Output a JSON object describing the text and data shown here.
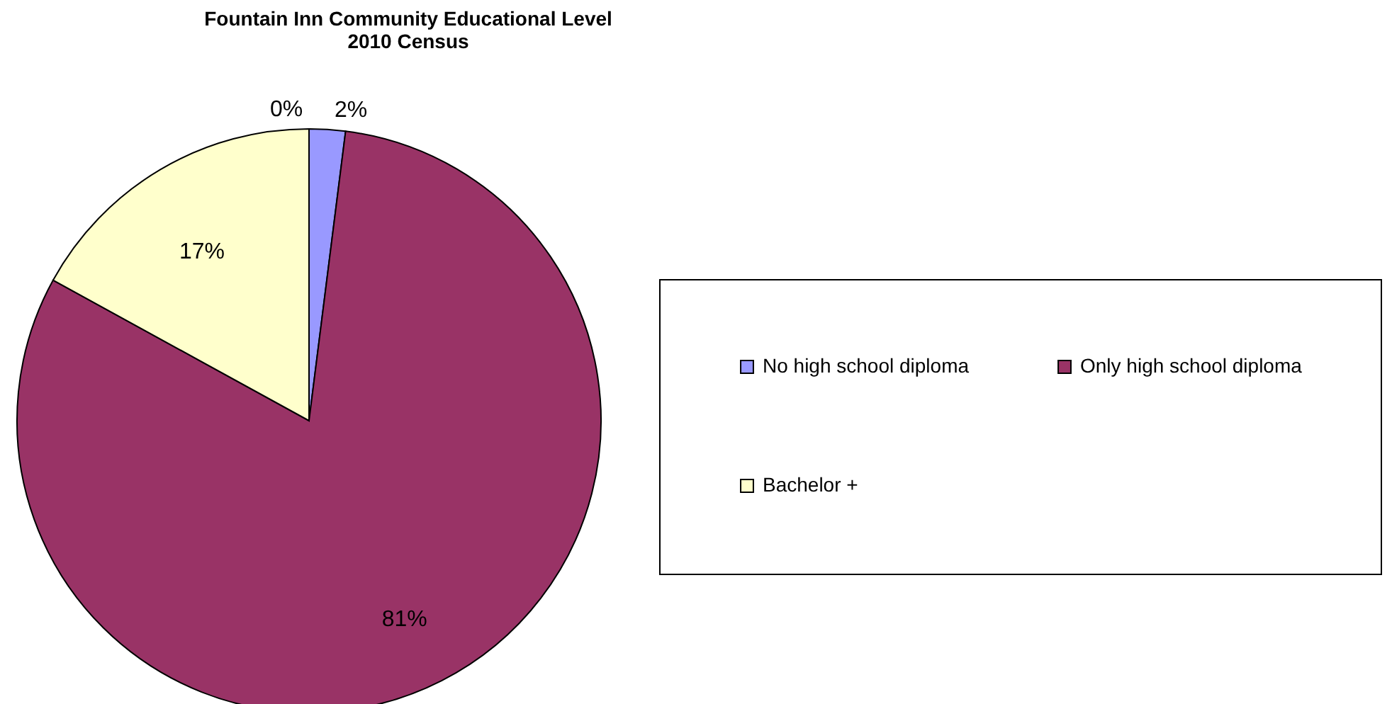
{
  "chart_data": {
    "type": "pie",
    "title": "Fountain Inn Community Educational Level\n2010 Census",
    "categories": [
      "No high school diploma",
      "Only high school diploma",
      "Bachelor  +",
      null
    ],
    "values": [
      2,
      81,
      17,
      0
    ],
    "colors": [
      "#9999ff",
      "#993366",
      "#ffffcc",
      "#ffffff"
    ],
    "value_labels": [
      "2%",
      "81%",
      "17%",
      "0%"
    ],
    "legend": "right"
  }
}
